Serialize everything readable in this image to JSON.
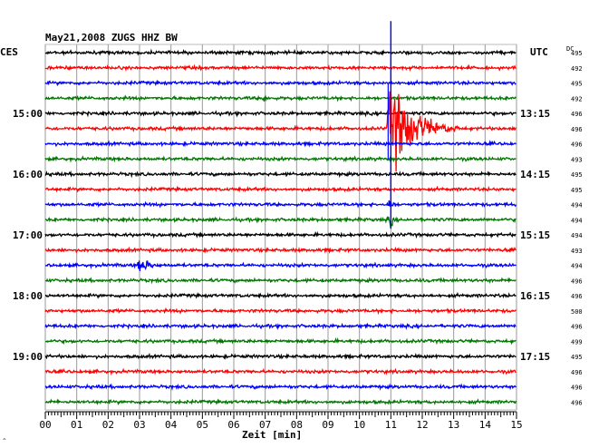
{
  "chart_data": {
    "type": "line",
    "title": "May21,2008   ZUGS HHZ BW",
    "left_timezone": "CES",
    "right_timezone": "UTC",
    "dc_header": "DC",
    "xlabel": "Zeit [min]",
    "xlim": [
      0,
      15
    ],
    "x_ticks": [
      "00",
      "01",
      "02",
      "03",
      "04",
      "05",
      "06",
      "07",
      "08",
      "09",
      "10",
      "11",
      "12",
      "13",
      "14",
      "15"
    ],
    "left_hour_labels": [
      {
        "trace": 4,
        "label": "15:00"
      },
      {
        "trace": 8,
        "label": "16:00"
      },
      {
        "trace": 12,
        "label": "17:00"
      },
      {
        "trace": 16,
        "label": "18:00"
      },
      {
        "trace": 20,
        "label": "19:00"
      }
    ],
    "right_hour_labels": [
      {
        "trace": 4,
        "label": "13:15"
      },
      {
        "trace": 8,
        "label": "14:15"
      },
      {
        "trace": 12,
        "label": "15:15"
      },
      {
        "trace": 16,
        "label": "16:15"
      },
      {
        "trace": 20,
        "label": "17:15"
      }
    ],
    "dc_offsets": [
      495,
      492,
      495,
      492,
      496,
      496,
      496,
      493,
      495,
      495,
      494,
      494,
      494,
      493,
      494,
      496,
      496,
      500,
      496,
      499,
      495,
      496,
      496,
      496
    ],
    "trace_colors": [
      "#000000",
      "#ff0000",
      "#0000ff",
      "#007700"
    ],
    "grid": true,
    "events": [
      {
        "trace": 3,
        "minute": 7.0,
        "amplitude": "small",
        "duration_min": 0.3
      },
      {
        "trace": 5,
        "minute": 11.0,
        "amplitude": "large",
        "duration_min": 2.2,
        "extends_traces": [
          -6,
          6
        ]
      },
      {
        "trace": 10,
        "minute": 11.0,
        "amplitude": "medium",
        "duration_min": 0.3
      },
      {
        "trace": 11,
        "minute": 11.0,
        "amplitude": "medium",
        "duration_min": 0.3
      },
      {
        "trace": 14,
        "minute": 3.0,
        "amplitude": "medium",
        "duration_min": 1.2
      }
    ]
  },
  "footer_mark": "^"
}
